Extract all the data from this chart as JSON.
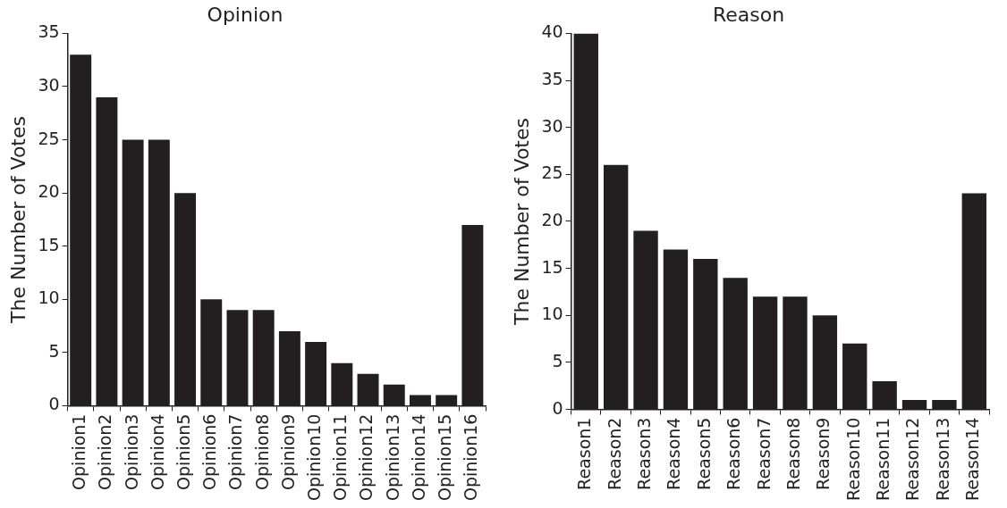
{
  "chart_data": [
    {
      "type": "bar",
      "title": "Opinion",
      "ylabel": "The Number of Votes",
      "categories": [
        "Opinion1",
        "Opinion2",
        "Opinion3",
        "Opinion4",
        "Opinion5",
        "Opinion6",
        "Opinion7",
        "Opinion8",
        "Opinion9",
        "Opinion10",
        "Opinion11",
        "Opinion12",
        "Opinion13",
        "Opinion14",
        "Opinion15",
        "Opinion16"
      ],
      "values": [
        33,
        29,
        25,
        25,
        20,
        10,
        9,
        9,
        7,
        6,
        4,
        3,
        2,
        1,
        1,
        17
      ],
      "color": "#231f20",
      "ylim": [
        0,
        35
      ],
      "yticks": [
        0,
        5,
        10,
        15,
        20,
        25,
        30,
        35
      ]
    },
    {
      "type": "bar",
      "title": "Reason",
      "ylabel": "The Number of Votes",
      "categories": [
        "Reason1",
        "Reason2",
        "Reason3",
        "Reason4",
        "Reason5",
        "Reason6",
        "Reason7",
        "Reason8",
        "Reason9",
        "Reason10",
        "Reason11",
        "Reason12",
        "Reason13",
        "Reason14"
      ],
      "values": [
        40,
        26,
        19,
        17,
        16,
        14,
        12,
        12,
        10,
        7,
        3,
        1,
        1,
        23
      ],
      "color": "#231f20",
      "ylim": [
        0,
        40
      ],
      "yticks": [
        0,
        5,
        10,
        15,
        20,
        25,
        30,
        35,
        40
      ]
    }
  ]
}
